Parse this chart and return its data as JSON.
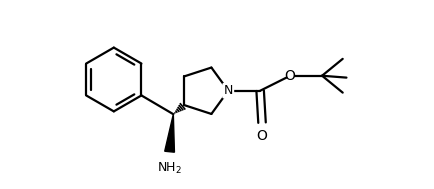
{
  "background_color": "#ffffff",
  "line_color": "#000000",
  "line_width": 1.6,
  "fig_width": 4.34,
  "fig_height": 1.89,
  "dpi": 100,
  "xlim": [
    0.0,
    8.5
  ],
  "ylim": [
    -1.5,
    3.5
  ]
}
